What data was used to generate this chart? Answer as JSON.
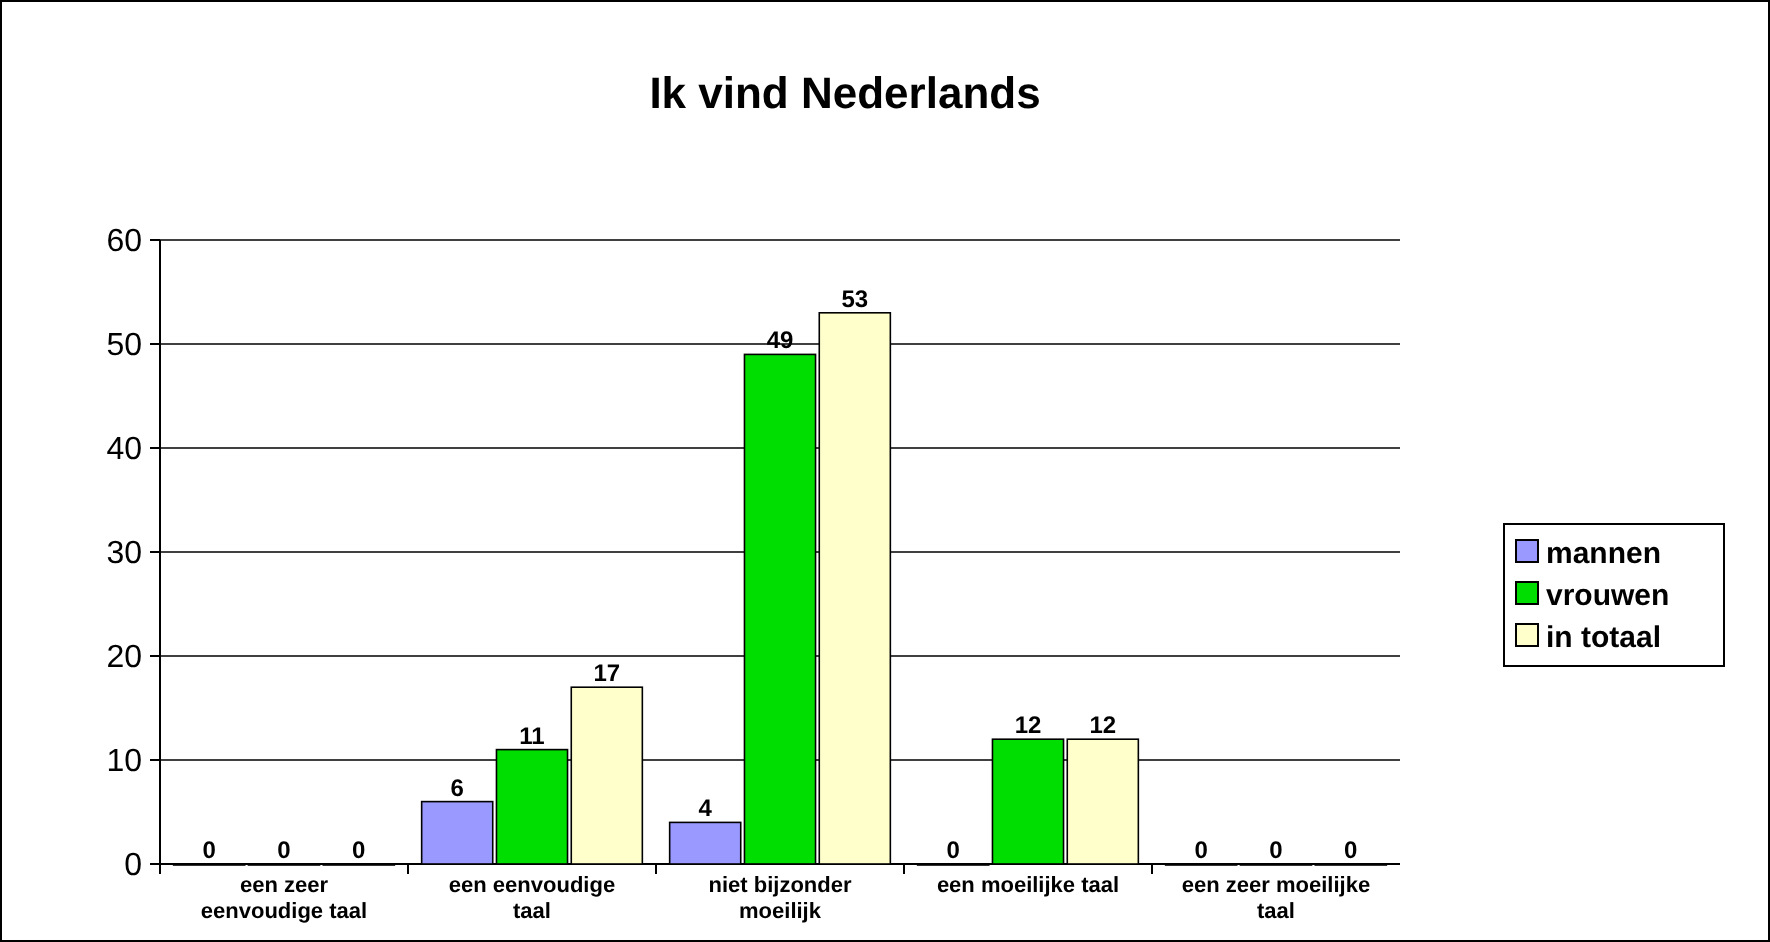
{
  "chart_data": {
    "type": "bar",
    "title": "Ik vind Nederlands",
    "categories": [
      "een zeer eenvoudige taal",
      "een eenvoudige taal",
      "niet bijzonder moeilijk",
      "een moeilijke taal",
      "een zeer moeilijke taal"
    ],
    "series": [
      {
        "name": "mannen",
        "color": "#9999ff",
        "values": [
          0,
          6,
          4,
          0,
          0
        ]
      },
      {
        "name": "vrouwen",
        "color": "#00dd00",
        "values": [
          0,
          11,
          49,
          12,
          0
        ]
      },
      {
        "name": "in totaal",
        "color": "#ffffcc",
        "values": [
          0,
          17,
          53,
          12,
          0
        ]
      }
    ],
    "ylim": [
      0,
      60
    ],
    "yticks": [
      0,
      10,
      20,
      30,
      40,
      50,
      60
    ],
    "grid": "y",
    "legend": "right",
    "data_labels": true
  }
}
